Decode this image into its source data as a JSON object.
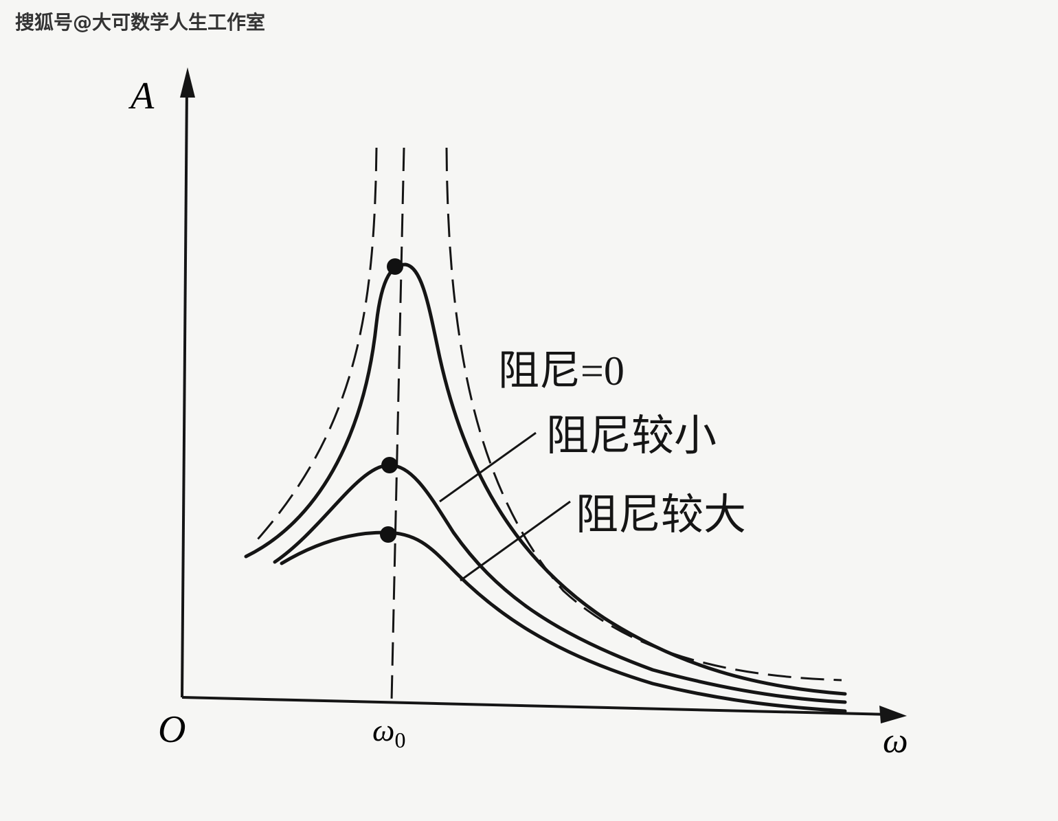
{
  "watermark": "搜狐号@大可数学人生工作室",
  "axes": {
    "y_label": "A",
    "x_label": "ω",
    "origin": "O",
    "resonance_label": "ω",
    "resonance_subscript": "0"
  },
  "curves": [
    {
      "label": "阻尼=0"
    },
    {
      "label": "阻尼较小"
    },
    {
      "label": "阻尼较大"
    }
  ]
}
